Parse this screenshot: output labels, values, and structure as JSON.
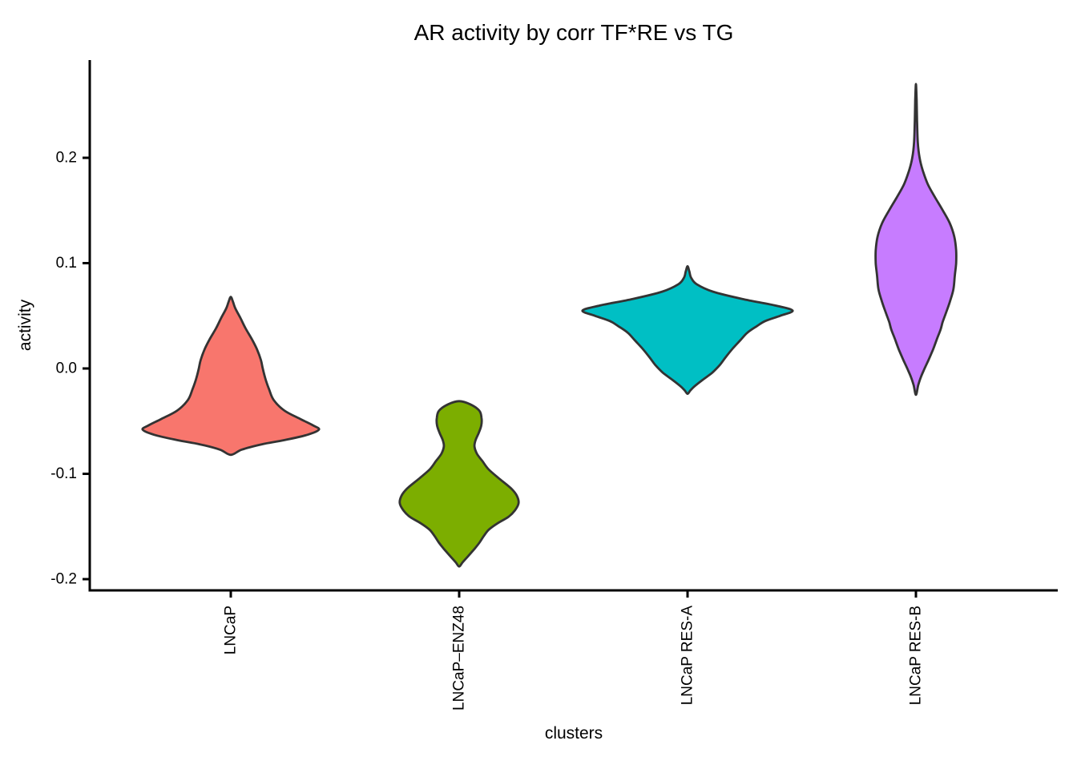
{
  "chart_data": {
    "type": "violin",
    "title": "AR activity by corr TF*RE vs TG",
    "xlabel": "clusters",
    "ylabel": "activity",
    "legend": "none",
    "grid": false,
    "background": "#ffffff",
    "axis_color": "#000000",
    "outline_color": "#333333",
    "ylim": [
      -0.22,
      0.29
    ],
    "y_ticks": [
      0.2,
      0.1,
      0.0,
      -0.1,
      -0.2
    ],
    "y_tick_labels": [
      "0.2",
      "0.1",
      "0.0",
      "-0.1",
      "-0.2"
    ],
    "categories": [
      "LNCaP",
      "LNCaP–ENZ48",
      "LNCaP RES-A",
      "LNCaP RES-B"
    ],
    "series": [
      {
        "name": "LNCaP",
        "fill": "#F8766D",
        "activity_range": [
          -0.082,
          0.068
        ],
        "peak_density_at": -0.058,
        "profile": [
          [
            0.068,
            0.0
          ],
          [
            0.063,
            0.01
          ],
          [
            0.057,
            0.02
          ],
          [
            0.048,
            0.042
          ],
          [
            0.038,
            0.065
          ],
          [
            0.028,
            0.092
          ],
          [
            0.018,
            0.115
          ],
          [
            0.008,
            0.132
          ],
          [
            0.0,
            0.14
          ],
          [
            -0.01,
            0.152
          ],
          [
            -0.02,
            0.168
          ],
          [
            -0.03,
            0.188
          ],
          [
            -0.04,
            0.235
          ],
          [
            -0.048,
            0.305
          ],
          [
            -0.054,
            0.36
          ],
          [
            -0.058,
            0.386
          ],
          [
            -0.063,
            0.335
          ],
          [
            -0.068,
            0.235
          ],
          [
            -0.072,
            0.135
          ],
          [
            -0.077,
            0.048
          ],
          [
            -0.082,
            0.0
          ]
        ]
      },
      {
        "name": "LNCaP–ENZ48",
        "fill": "#7CAE00",
        "activity_range": [
          -0.188,
          -0.031
        ],
        "peak_density_at": -0.128,
        "profile": [
          [
            -0.031,
            0.0
          ],
          [
            -0.034,
            0.048
          ],
          [
            -0.04,
            0.088
          ],
          [
            -0.047,
            0.098
          ],
          [
            -0.054,
            0.097
          ],
          [
            -0.061,
            0.086
          ],
          [
            -0.068,
            0.072
          ],
          [
            -0.074,
            0.067
          ],
          [
            -0.081,
            0.078
          ],
          [
            -0.088,
            0.102
          ],
          [
            -0.096,
            0.13
          ],
          [
            -0.105,
            0.178
          ],
          [
            -0.114,
            0.228
          ],
          [
            -0.121,
            0.253
          ],
          [
            -0.128,
            0.26
          ],
          [
            -0.135,
            0.243
          ],
          [
            -0.141,
            0.215
          ],
          [
            -0.147,
            0.168
          ],
          [
            -0.153,
            0.13
          ],
          [
            -0.159,
            0.108
          ],
          [
            -0.165,
            0.09
          ],
          [
            -0.171,
            0.068
          ],
          [
            -0.178,
            0.04
          ],
          [
            -0.184,
            0.015
          ],
          [
            -0.188,
            0.0
          ]
        ]
      },
      {
        "name": "LNCaP RES-A",
        "fill": "#00BFC4",
        "activity_range": [
          -0.024,
          0.097
        ],
        "peak_density_at": 0.055,
        "profile": [
          [
            0.097,
            0.0
          ],
          [
            0.092,
            0.008
          ],
          [
            0.086,
            0.016
          ],
          [
            0.08,
            0.04
          ],
          [
            0.073,
            0.11
          ],
          [
            0.066,
            0.24
          ],
          [
            0.06,
            0.38
          ],
          [
            0.055,
            0.46
          ],
          [
            0.05,
            0.405
          ],
          [
            0.045,
            0.34
          ],
          [
            0.04,
            0.302
          ],
          [
            0.034,
            0.262
          ],
          [
            0.027,
            0.232
          ],
          [
            0.019,
            0.198
          ],
          [
            0.011,
            0.168
          ],
          [
            0.003,
            0.14
          ],
          [
            -0.004,
            0.108
          ],
          [
            -0.011,
            0.065
          ],
          [
            -0.017,
            0.03
          ],
          [
            -0.021,
            0.012
          ],
          [
            -0.024,
            0.0
          ]
        ]
      },
      {
        "name": "LNCaP RES-B",
        "fill": "#C77CFF",
        "activity_range": [
          -0.025,
          0.27
        ],
        "peak_density_at": 0.106,
        "profile": [
          [
            0.27,
            0.0
          ],
          [
            0.255,
            0.003
          ],
          [
            0.235,
            0.005
          ],
          [
            0.215,
            0.008
          ],
          [
            0.2,
            0.016
          ],
          [
            0.188,
            0.03
          ],
          [
            0.175,
            0.052
          ],
          [
            0.162,
            0.085
          ],
          [
            0.15,
            0.118
          ],
          [
            0.138,
            0.148
          ],
          [
            0.125,
            0.168
          ],
          [
            0.112,
            0.176
          ],
          [
            0.1,
            0.176
          ],
          [
            0.088,
            0.17
          ],
          [
            0.075,
            0.164
          ],
          [
            0.063,
            0.148
          ],
          [
            0.053,
            0.132
          ],
          [
            0.044,
            0.117
          ],
          [
            0.037,
            0.108
          ],
          [
            0.028,
            0.092
          ],
          [
            0.018,
            0.075
          ],
          [
            0.008,
            0.055
          ],
          [
            0.0,
            0.038
          ],
          [
            -0.008,
            0.022
          ],
          [
            -0.016,
            0.01
          ],
          [
            -0.025,
            0.0
          ]
        ]
      }
    ]
  }
}
